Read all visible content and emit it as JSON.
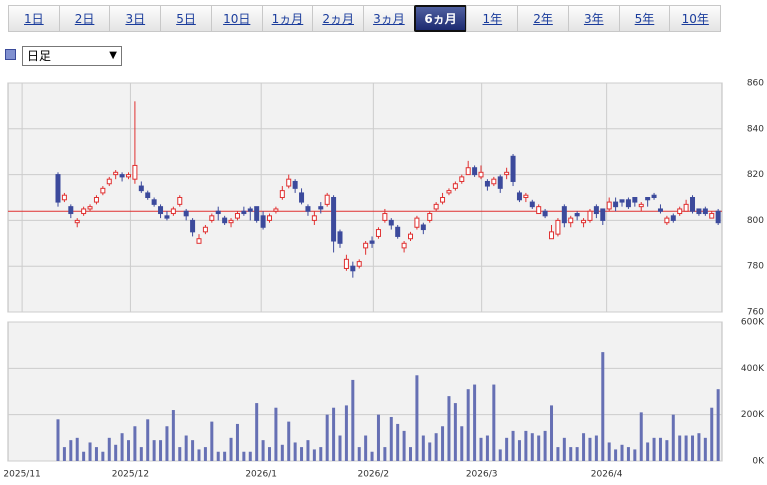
{
  "tabs": [
    "1日",
    "2日",
    "3日",
    "5日",
    "10日",
    "1ヵ月",
    "2ヵ月",
    "3ヵ月",
    "6ヵ月",
    "1年",
    "2年",
    "3年",
    "5年",
    "10年"
  ],
  "selected_tab": 8,
  "dropdown": "日足",
  "chart_data": [
    {
      "type": "candlestick",
      "up_color": "#e03030",
      "down_color": "#3c4a9c",
      "xlim": [
        -7.8,
        103.6
      ],
      "xticks": [
        {
          "value": -5.6,
          "label": "2025/11"
        },
        {
          "value": 11.3,
          "label": "2025/12"
        },
        {
          "value": 31.7,
          "label": "2026/1"
        },
        {
          "value": 49.2,
          "label": "2026/2"
        },
        {
          "value": 66.1,
          "label": "2026/3"
        },
        {
          "value": 85.6,
          "label": "2026/4"
        }
      ],
      "ylim": [
        760,
        860
      ],
      "yticks": [
        760,
        780,
        800,
        820,
        840,
        860
      ],
      "grid": true,
      "reference_line": {
        "value": 804,
        "color": "#e03030"
      },
      "ohlc": [
        [
          820,
          821,
          806,
          808
        ],
        [
          809,
          812,
          808,
          811
        ],
        [
          806,
          807,
          801,
          803
        ],
        [
          799,
          801,
          797,
          800
        ],
        [
          803,
          806,
          802,
          805
        ],
        [
          805,
          807,
          804,
          806
        ],
        [
          808,
          811,
          807,
          810
        ],
        [
          812,
          815,
          811,
          814
        ],
        [
          816,
          819,
          815,
          818
        ],
        [
          820,
          822,
          818,
          821
        ],
        [
          820,
          821,
          817,
          819
        ],
        [
          819,
          821,
          818,
          820
        ],
        [
          818,
          852,
          816,
          824
        ],
        [
          815,
          817,
          812,
          813
        ],
        [
          812,
          813,
          809,
          810
        ],
        [
          809,
          810,
          806,
          807
        ],
        [
          806,
          807,
          801,
          803
        ],
        [
          802,
          804,
          800,
          801
        ],
        [
          803,
          806,
          802,
          805
        ],
        [
          807,
          811,
          806,
          810
        ],
        [
          804,
          805,
          800,
          802
        ],
        [
          800,
          801,
          793,
          795
        ],
        [
          790,
          794,
          790,
          792
        ],
        [
          795,
          798,
          794,
          797
        ],
        [
          800,
          803,
          799,
          802
        ],
        [
          804,
          806,
          800,
          803
        ],
        [
          801,
          802,
          798,
          799
        ],
        [
          799,
          801,
          797,
          800
        ],
        [
          801,
          804,
          800,
          803
        ],
        [
          804,
          806,
          802,
          803
        ],
        [
          805,
          806,
          800,
          804
        ],
        [
          806,
          806,
          799,
          800
        ],
        [
          802,
          804,
          796,
          797
        ],
        [
          800,
          803,
          799,
          802
        ],
        [
          804,
          806,
          803,
          805
        ],
        [
          810,
          815,
          809,
          813
        ],
        [
          815,
          820,
          814,
          818
        ],
        [
          817,
          818,
          812,
          814
        ],
        [
          812,
          814,
          807,
          808
        ],
        [
          806,
          807,
          802,
          804
        ],
        [
          800,
          804,
          798,
          802
        ],
        [
          806,
          808,
          803,
          805
        ],
        [
          807,
          812,
          806,
          811
        ],
        [
          810,
          811,
          786,
          791
        ],
        [
          795,
          796,
          788,
          790
        ],
        [
          779,
          785,
          778,
          783
        ],
        [
          780,
          782,
          775,
          778
        ],
        [
          780,
          783,
          779,
          782
        ],
        [
          788,
          791,
          785,
          790
        ],
        [
          791,
          793,
          788,
          790
        ],
        [
          793,
          797,
          792,
          796
        ],
        [
          800,
          805,
          799,
          803
        ],
        [
          800,
          801,
          796,
          798
        ],
        [
          797,
          798,
          792,
          793
        ],
        [
          788,
          791,
          786,
          790
        ],
        [
          792,
          795,
          791,
          794
        ],
        [
          797,
          802,
          796,
          801
        ],
        [
          798,
          799,
          794,
          796
        ],
        [
          800,
          804,
          799,
          803
        ],
        [
          805,
          808,
          804,
          807
        ],
        [
          808,
          812,
          807,
          810
        ],
        [
          812,
          814,
          811,
          813
        ],
        [
          814,
          817,
          813,
          816
        ],
        [
          817,
          820,
          816,
          819
        ],
        [
          820,
          826,
          820,
          823
        ],
        [
          823,
          824,
          819,
          820
        ],
        [
          819,
          824,
          818,
          821
        ],
        [
          817,
          818,
          813,
          815
        ],
        [
          816,
          819,
          815,
          818
        ],
        [
          819,
          820,
          812,
          814
        ],
        [
          820,
          823,
          818,
          821
        ],
        [
          828,
          829,
          815,
          817
        ],
        [
          812,
          813,
          808,
          809
        ],
        [
          810,
          812,
          808,
          811
        ],
        [
          808,
          809,
          805,
          806
        ],
        [
          803,
          807,
          803,
          806
        ],
        [
          804,
          805,
          801,
          802
        ],
        [
          792,
          798,
          792,
          795
        ],
        [
          794,
          801,
          793,
          800
        ],
        [
          806,
          807,
          797,
          799
        ],
        [
          799,
          802,
          797,
          801
        ],
        [
          803,
          804,
          800,
          802
        ],
        [
          799,
          801,
          797,
          800
        ],
        [
          800,
          805,
          799,
          804
        ],
        [
          806,
          807,
          801,
          803
        ],
        [
          805,
          805,
          798,
          800
        ],
        [
          805,
          810,
          804,
          808
        ],
        [
          808,
          810,
          804,
          806
        ],
        [
          809,
          809,
          806,
          808
        ],
        [
          809,
          810,
          805,
          806
        ],
        [
          810,
          810,
          806,
          808
        ],
        [
          806,
          808,
          804,
          807
        ],
        [
          810,
          810,
          806,
          809
        ],
        [
          811,
          812,
          809,
          810
        ],
        [
          805,
          807,
          803,
          804
        ],
        [
          799,
          802,
          798,
          801
        ],
        [
          802,
          803,
          799,
          800
        ],
        [
          803,
          806,
          802,
          805
        ],
        [
          804,
          809,
          804,
          807
        ],
        [
          810,
          811,
          803,
          804
        ],
        [
          805,
          805,
          802,
          803
        ],
        [
          805,
          806,
          802,
          803
        ],
        [
          801,
          804,
          801,
          803
        ],
        [
          804,
          805,
          798,
          799
        ]
      ]
    },
    {
      "type": "bar",
      "color": "#6670b4",
      "xlim": [
        -7.8,
        103.6
      ],
      "ylim": [
        0,
        600000
      ],
      "yticks": [
        {
          "value": 0,
          "label": "0K"
        },
        {
          "value": 200000,
          "label": "200K"
        },
        {
          "value": 400000,
          "label": "400K"
        },
        {
          "value": 600000,
          "label": "600K"
        }
      ],
      "grid": true,
      "values": [
        180000,
        60000,
        90000,
        100000,
        40000,
        80000,
        60000,
        40000,
        100000,
        70000,
        120000,
        90000,
        150000,
        60000,
        180000,
        90000,
        90000,
        150000,
        220000,
        60000,
        110000,
        90000,
        50000,
        60000,
        170000,
        40000,
        40000,
        100000,
        160000,
        40000,
        40000,
        250000,
        90000,
        60000,
        230000,
        70000,
        170000,
        80000,
        60000,
        90000,
        50000,
        60000,
        200000,
        230000,
        110000,
        240000,
        350000,
        60000,
        110000,
        40000,
        200000,
        60000,
        190000,
        160000,
        130000,
        60000,
        370000,
        110000,
        80000,
        120000,
        150000,
        280000,
        250000,
        150000,
        310000,
        330000,
        100000,
        110000,
        330000,
        50000,
        100000,
        130000,
        90000,
        130000,
        120000,
        110000,
        130000,
        240000,
        60000,
        100000,
        60000,
        60000,
        120000,
        100000,
        110000,
        470000,
        80000,
        50000,
        70000,
        60000,
        50000,
        210000,
        80000,
        100000,
        100000,
        90000,
        200000,
        110000,
        110000,
        110000,
        120000,
        100000,
        230000,
        310000
      ]
    }
  ]
}
